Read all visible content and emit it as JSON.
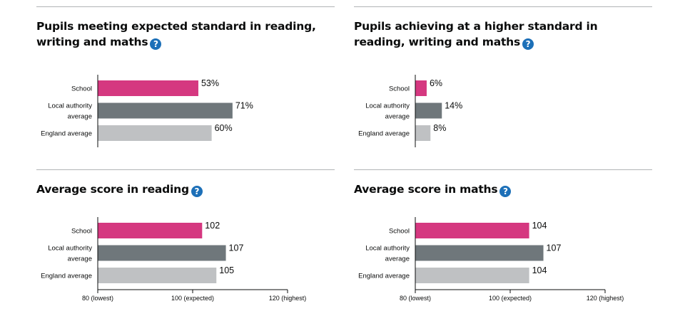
{
  "colors": {
    "school": "#d53880",
    "local": "#6f777b",
    "england": "#bfc1c3",
    "help": "#1d70b8"
  },
  "panels": [
    {
      "title": "Pupils meeting expected standard in reading, writing and maths",
      "help_icon": "question-mark-icon"
    },
    {
      "title": "Pupils achieving at a higher standard in reading, writing and maths",
      "help_icon": "question-mark-icon"
    },
    {
      "title": "Average score in reading",
      "help_icon": "question-mark-icon"
    },
    {
      "title": "Average score in maths",
      "help_icon": "question-mark-icon"
    }
  ],
  "chart_data": [
    {
      "type": "bar",
      "orientation": "horizontal",
      "categories": [
        [
          "School"
        ],
        [
          "Local authority",
          "average"
        ],
        [
          "England average"
        ]
      ],
      "values": [
        53,
        71,
        60
      ],
      "labels": [
        "53%",
        "71%",
        "60%"
      ],
      "unit": "%",
      "xlim": [
        0,
        100
      ]
    },
    {
      "type": "bar",
      "orientation": "horizontal",
      "categories": [
        [
          "School"
        ],
        [
          "Local authority",
          "average"
        ],
        [
          "England average"
        ]
      ],
      "values": [
        6,
        14,
        8
      ],
      "labels": [
        "6%",
        "14%",
        "8%"
      ],
      "unit": "%",
      "xlim": [
        0,
        100
      ]
    },
    {
      "type": "bar",
      "orientation": "horizontal",
      "categories": [
        [
          "School"
        ],
        [
          "Local authority",
          "average"
        ],
        [
          "England average"
        ]
      ],
      "values": [
        102,
        107,
        105
      ],
      "labels": [
        "102",
        "107",
        "105"
      ],
      "xlim": [
        80,
        120
      ],
      "ticks": [
        {
          "value": 80,
          "label": "80 (lowest)"
        },
        {
          "value": 100,
          "label": "100 (expected)"
        },
        {
          "value": 120,
          "label": "120 (highest)"
        }
      ]
    },
    {
      "type": "bar",
      "orientation": "horizontal",
      "categories": [
        [
          "School"
        ],
        [
          "Local authority",
          "average"
        ],
        [
          "England average"
        ]
      ],
      "values": [
        104,
        107,
        104
      ],
      "labels": [
        "104",
        "107",
        "104"
      ],
      "xlim": [
        80,
        120
      ],
      "ticks": [
        {
          "value": 80,
          "label": "80 (lowest)"
        },
        {
          "value": 100,
          "label": "100 (expected)"
        },
        {
          "value": 120,
          "label": "120 (highest)"
        }
      ]
    }
  ]
}
